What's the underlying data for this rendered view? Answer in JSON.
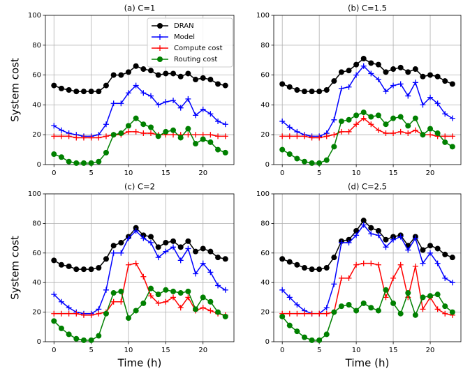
{
  "chart_data": [
    {
      "type": "line",
      "title": "(a) C=1",
      "ylabel": "System cost",
      "x": [
        0,
        1,
        2,
        3,
        4,
        5,
        6,
        7,
        8,
        9,
        10,
        11,
        12,
        13,
        14,
        15,
        16,
        17,
        18,
        19,
        20,
        21,
        22,
        23
      ],
      "xlim": [
        -1.15,
        24.15
      ],
      "xticks": [
        0,
        5,
        10,
        15,
        20
      ],
      "ylim": [
        0,
        100
      ],
      "yticks": [
        0,
        20,
        40,
        60,
        80,
        100
      ],
      "grid": true,
      "legend": "upper right",
      "series": [
        {
          "name": "DRAN",
          "color": "#000000",
          "marker": "o",
          "values": [
            53,
            51,
            50,
            49,
            49,
            49,
            49,
            53,
            60,
            60,
            62,
            66,
            64,
            63,
            60,
            61,
            61,
            59,
            61,
            57,
            58,
            57,
            54,
            53
          ]
        },
        {
          "name": "Model",
          "color": "#0000ff",
          "marker": "+",
          "values": [
            26,
            23,
            21,
            20,
            19,
            19,
            20,
            27,
            41,
            41,
            48,
            53,
            48,
            46,
            40,
            42,
            43,
            38,
            44,
            33,
            37,
            34,
            29,
            27
          ]
        },
        {
          "name": "Compute cost",
          "color": "#ff0000",
          "marker": "+",
          "values": [
            19,
            19,
            19,
            18,
            18,
            18,
            18,
            19,
            20,
            20,
            22,
            22,
            21,
            21,
            20,
            20,
            20,
            20,
            20,
            20,
            20,
            20,
            19,
            19
          ]
        },
        {
          "name": "Routing cost",
          "color": "#008000",
          "marker": "o",
          "values": [
            7,
            5,
            2,
            1,
            1,
            1,
            2,
            8,
            20,
            21,
            26,
            31,
            27,
            25,
            19,
            22,
            23,
            18,
            24,
            14,
            17,
            15,
            10,
            8
          ]
        }
      ]
    },
    {
      "type": "line",
      "title": "(b) C=1.5",
      "x": [
        0,
        1,
        2,
        3,
        4,
        5,
        6,
        7,
        8,
        9,
        10,
        11,
        12,
        13,
        14,
        15,
        16,
        17,
        18,
        19,
        20,
        21,
        22,
        23
      ],
      "xlim": [
        -1.15,
        24.15
      ],
      "xticks": [
        0,
        5,
        10,
        15,
        20
      ],
      "ylim": [
        0,
        100
      ],
      "yticks": [
        0,
        20,
        40,
        60,
        80,
        100
      ],
      "grid": true,
      "series": [
        {
          "color": "#000000",
          "marker": "o",
          "values": [
            54,
            52,
            50,
            49,
            49,
            49,
            50,
            56,
            62,
            63,
            67,
            71,
            68,
            67,
            62,
            64,
            65,
            62,
            64,
            59,
            60,
            59,
            56,
            54
          ]
        },
        {
          "color": "#0000ff",
          "marker": "+",
          "values": [
            29,
            25,
            22,
            20,
            19,
            19,
            21,
            30,
            51,
            52,
            60,
            66,
            61,
            57,
            49,
            53,
            54,
            46,
            55,
            40,
            45,
            41,
            34,
            31
          ]
        },
        {
          "color": "#ff0000",
          "marker": "+",
          "values": [
            19,
            19,
            19,
            19,
            18,
            18,
            19,
            20,
            22,
            22,
            27,
            31,
            27,
            23,
            21,
            21,
            22,
            21,
            23,
            20,
            20,
            19,
            19,
            19
          ]
        },
        {
          "color": "#008000",
          "marker": "o",
          "values": [
            10,
            7,
            4,
            2,
            1,
            1,
            3,
            12,
            29,
            30,
            33,
            35,
            32,
            33,
            27,
            31,
            32,
            26,
            31,
            20,
            24,
            21,
            15,
            12
          ]
        }
      ]
    },
    {
      "type": "line",
      "title": "(c) C=2",
      "ylabel": "System cost",
      "xlabel": "Time (h)",
      "x": [
        0,
        1,
        2,
        3,
        4,
        5,
        6,
        7,
        8,
        9,
        10,
        11,
        12,
        13,
        14,
        15,
        16,
        17,
        18,
        19,
        20,
        21,
        22,
        23
      ],
      "xlim": [
        -1.15,
        24.15
      ],
      "xticks": [
        0,
        5,
        10,
        15,
        20
      ],
      "ylim": [
        0,
        100
      ],
      "yticks": [
        0,
        20,
        40,
        60,
        80,
        100
      ],
      "grid": true,
      "series": [
        {
          "color": "#000000",
          "marker": "o",
          "values": [
            55,
            52,
            51,
            49,
            49,
            49,
            50,
            56,
            65,
            67,
            71,
            77,
            72,
            71,
            64,
            67,
            68,
            64,
            68,
            61,
            63,
            61,
            57,
            56
          ]
        },
        {
          "color": "#0000ff",
          "marker": "+",
          "values": [
            32,
            27,
            23,
            20,
            19,
            19,
            22,
            35,
            60,
            60,
            70,
            75,
            70,
            67,
            57,
            61,
            64,
            55,
            63,
            46,
            53,
            47,
            38,
            35
          ]
        },
        {
          "color": "#ff0000",
          "marker": "+",
          "values": [
            19,
            19,
            19,
            19,
            18,
            18,
            19,
            20,
            27,
            27,
            52,
            53,
            44,
            31,
            26,
            27,
            30,
            23,
            30,
            21,
            23,
            21,
            19,
            18
          ]
        },
        {
          "color": "#008000",
          "marker": "o",
          "values": [
            14,
            9,
            5,
            2,
            1,
            1,
            4,
            19,
            33,
            34,
            16,
            21,
            26,
            36,
            32,
            35,
            34,
            33,
            34,
            22,
            30,
            27,
            20,
            17
          ]
        }
      ]
    },
    {
      "type": "line",
      "title": "(d) C=2.5",
      "xlabel": "Time (h)",
      "x": [
        0,
        1,
        2,
        3,
        4,
        5,
        6,
        7,
        8,
        9,
        10,
        11,
        12,
        13,
        14,
        15,
        16,
        17,
        18,
        19,
        20,
        21,
        22,
        23
      ],
      "xlim": [
        -1.15,
        24.15
      ],
      "xticks": [
        0,
        5,
        10,
        15,
        20
      ],
      "ylim": [
        0,
        100
      ],
      "yticks": [
        0,
        20,
        40,
        60,
        80,
        100
      ],
      "grid": true,
      "series": [
        {
          "color": "#000000",
          "marker": "o",
          "values": [
            56,
            54,
            52,
            50,
            49,
            49,
            50,
            57,
            68,
            69,
            75,
            82,
            77,
            75,
            69,
            71,
            72,
            65,
            71,
            62,
            65,
            63,
            59,
            57
          ]
        },
        {
          "color": "#0000ff",
          "marker": "+",
          "values": [
            35,
            30,
            25,
            21,
            19,
            19,
            23,
            39,
            67,
            67,
            72,
            79,
            73,
            72,
            64,
            69,
            71,
            62,
            70,
            53,
            60,
            53,
            43,
            40
          ]
        },
        {
          "color": "#ff0000",
          "marker": "+",
          "values": [
            19,
            19,
            19,
            19,
            19,
            19,
            19,
            20,
            43,
            43,
            52,
            53,
            53,
            52,
            30,
            43,
            52,
            30,
            51,
            22,
            30,
            22,
            19,
            18
          ]
        },
        {
          "color": "#008000",
          "marker": "o",
          "values": [
            17,
            11,
            7,
            3,
            1,
            1,
            5,
            20,
            24,
            25,
            21,
            26,
            23,
            21,
            35,
            26,
            19,
            33,
            18,
            30,
            31,
            32,
            24,
            20
          ]
        }
      ]
    }
  ]
}
